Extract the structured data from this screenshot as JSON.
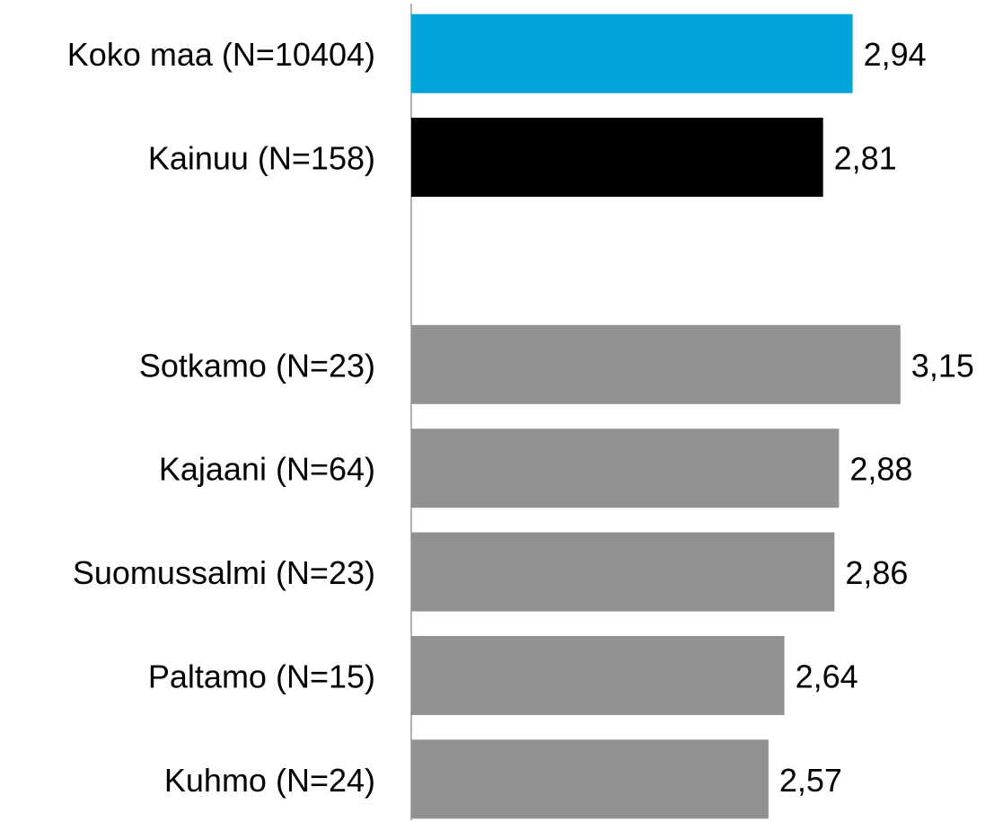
{
  "chart_data": {
    "type": "barh",
    "categories": [
      "Koko maa (N=10404)",
      "Kainuu (N=158)",
      null,
      "Sotkamo (N=23)",
      "Kajaani (N=64)",
      "Suomussalmi (N=23)",
      "Paltamo (N=15)",
      "Kuhmo (N=24)"
    ],
    "values": [
      2.94,
      2.81,
      null,
      3.15,
      2.88,
      2.86,
      2.64,
      2.57
    ],
    "value_labels": [
      "2,94",
      "2,81",
      null,
      "3,15",
      "2,88",
      "2,86",
      "2,64",
      "2,57"
    ],
    "colors": [
      "#00a3da",
      "#000000",
      null,
      "#919191",
      "#919191",
      "#919191",
      "#919191",
      "#919191"
    ],
    "xlim": [
      1,
      3.5
    ]
  }
}
